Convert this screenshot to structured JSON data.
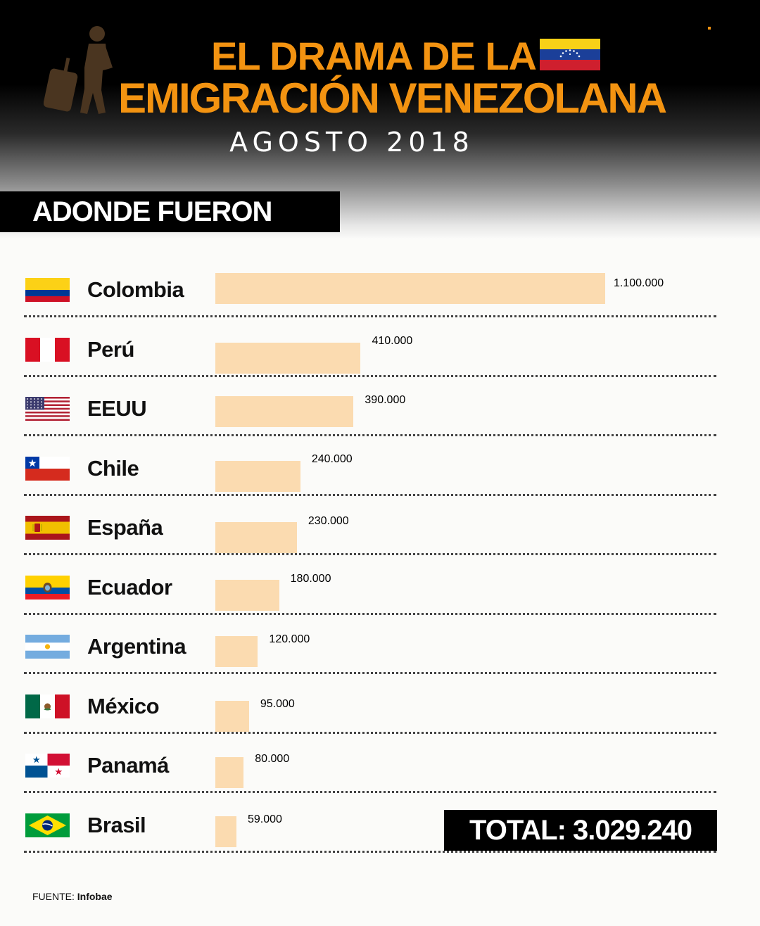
{
  "header": {
    "title_line1": "EL DRAMA DE LA",
    "title_line2": "EMIGRACIÓN VENEZOLANA",
    "subtitle": "AGOSTO 2018"
  },
  "section": {
    "title": "ADONDE FUERON"
  },
  "colors": {
    "accent": "#f39311",
    "bar": "#fbdbb0",
    "background": "#fbfbf9",
    "dark": "#000000"
  },
  "chart_data": {
    "type": "bar",
    "orientation": "horizontal",
    "categories": [
      "Colombia",
      "Perú",
      "EEUU",
      "Chile",
      "España",
      "Ecuador",
      "Argentina",
      "México",
      "Panamá",
      "Brasil"
    ],
    "values": [
      1100000,
      410000,
      390000,
      240000,
      230000,
      180000,
      120000,
      95000,
      80000,
      59000
    ],
    "value_labels": [
      "1.100.000",
      "410.000",
      "390.000",
      "240.000",
      "230.000",
      "180.000",
      "120.000",
      "95.000",
      "80.000",
      "59.000"
    ],
    "flags": [
      "colombia-flag",
      "peru-flag",
      "usa-flag",
      "chile-flag",
      "spain-flag",
      "ecuador-flag",
      "argentina-flag",
      "mexico-flag",
      "panama-flag",
      "brazil-flag"
    ],
    "xlim": [
      0,
      1100000
    ]
  },
  "total": {
    "label": "TOTAL: 3.029.240"
  },
  "source": {
    "label": "FUENTE:",
    "name": "Infobae"
  }
}
